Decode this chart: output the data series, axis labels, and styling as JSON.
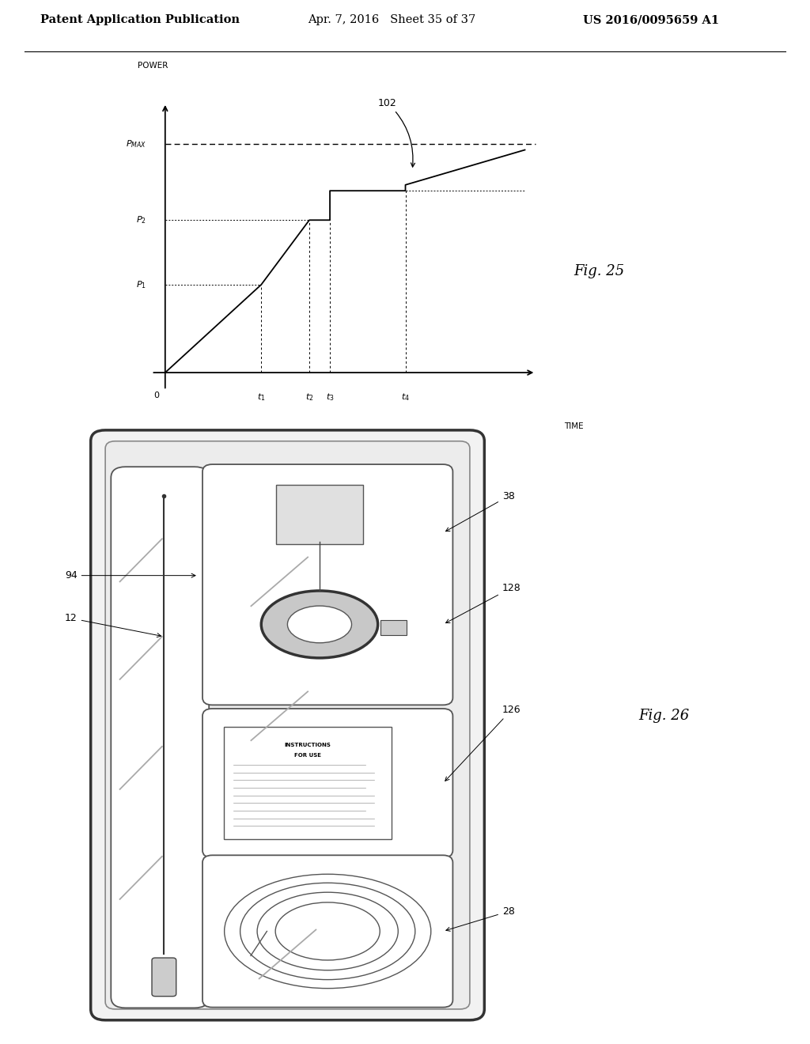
{
  "header_left": "Patent Application Publication",
  "header_mid": "Apr. 7, 2016   Sheet 35 of 37",
  "header_right": "US 2016/0095659 A1",
  "fig25_label": "Fig. 25",
  "fig26_label": "Fig. 26",
  "graph_ylabel": "POWER",
  "graph_xlabel": "TIME",
  "graph_annotation": "102",
  "background_color": "#ffffff",
  "p1": 0.3,
  "p2": 0.52,
  "pmax": 0.78,
  "p_step": 0.62,
  "t1": 0.28,
  "t2": 0.42,
  "t3": 0.48,
  "t4": 0.7
}
